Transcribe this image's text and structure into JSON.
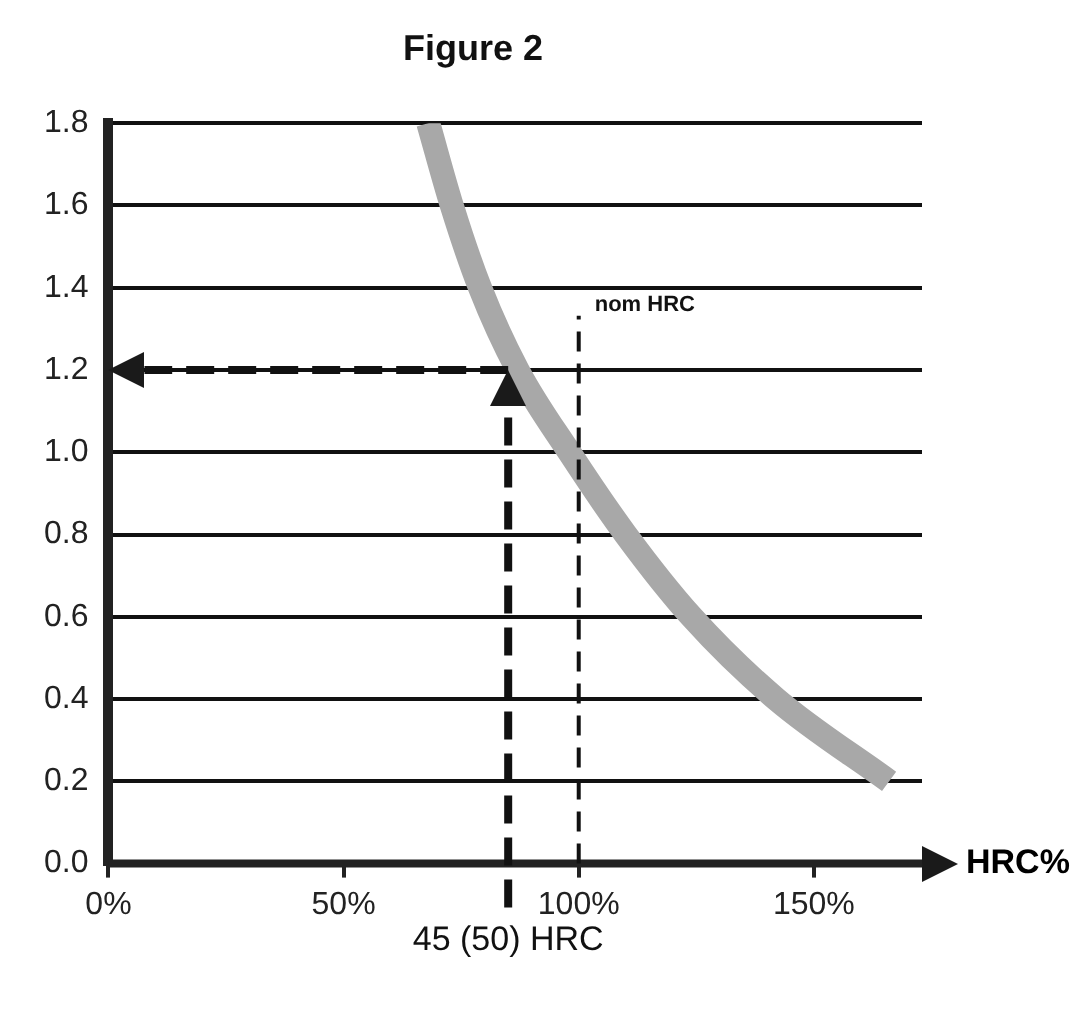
{
  "chart_data": {
    "type": "line",
    "title": "Figure 2",
    "xlabel": "HRC%",
    "x": [
      68,
      73,
      79,
      87,
      98,
      110,
      124,
      142,
      166
    ],
    "series": [
      {
        "color": "#a8a8a8",
        "values": [
          1.8,
          1.6,
          1.4,
          1.2,
          1.0,
          0.8,
          0.6,
          0.4,
          0.2
        ]
      }
    ],
    "xlim": [
      0,
      173
    ],
    "xticks": [
      {
        "value": 0,
        "label": "0%"
      },
      {
        "value": 50,
        "label": "50%"
      },
      {
        "value": 100,
        "label": "100%"
      },
      {
        "value": 150,
        "label": "150%"
      }
    ],
    "ylim": [
      0,
      1.8
    ],
    "yticks": [
      {
        "value": 0,
        "label": "0.0"
      },
      0.2,
      0.4,
      0.6,
      0.8,
      {
        "value": 1,
        "label": "1.0"
      },
      1.2,
      1.4,
      1.6,
      1.8
    ],
    "ref_lines": [
      {
        "axis": "x",
        "value": 85,
        "label": "45 (50) HRC",
        "line_style": "dashed"
      },
      {
        "axis": "y",
        "value": 1.2,
        "line_style": "dashed"
      },
      {
        "axis": "x",
        "value": 100,
        "label": "nom HRC",
        "line_style": "dashed"
      }
    ],
    "grid": "y",
    "legend": false,
    "marker": "none",
    "line_style": "solid"
  }
}
